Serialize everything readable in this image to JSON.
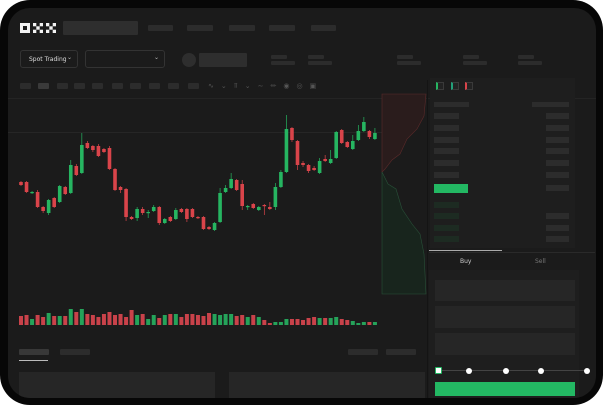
{
  "header": {
    "logo": "OKX"
  },
  "market_bar": {
    "mode_label": "Spot Trading"
  },
  "trade_panel": {
    "buy_label": "Buy",
    "sell_label": "Sell",
    "active_tab": "Buy",
    "slider_percent": 0
  },
  "colors": {
    "up": "#26b561",
    "down": "#d9444a",
    "accent": "#23b863",
    "background": "#1b1b1b"
  },
  "icons": [
    "chevron-down-icon",
    "indicator-icon",
    "draw-icon",
    "ruler-icon",
    "camera-icon",
    "settings-icon",
    "fullscreen-icon",
    "orderbook-both-icon",
    "orderbook-bids-icon",
    "orderbook-asks-icon"
  ],
  "chart_data": {
    "type": "candlestick",
    "candles": [
      [
        68,
        65,
        69,
        64
      ],
      [
        68,
        58,
        69,
        57
      ],
      [
        57,
        58,
        59,
        56
      ],
      [
        58,
        43,
        60,
        42
      ],
      [
        43,
        39,
        44,
        37
      ],
      [
        37,
        50,
        51,
        35
      ],
      [
        52,
        43,
        53,
        42
      ],
      [
        48,
        64,
        65,
        47
      ],
      [
        63,
        56,
        64,
        55
      ],
      [
        57,
        85,
        90,
        56
      ],
      [
        84,
        75,
        86,
        74
      ],
      [
        77,
        105,
        117,
        76
      ],
      [
        107,
        102,
        109,
        101
      ],
      [
        104,
        100,
        105,
        98
      ],
      [
        104,
        94,
        106,
        93
      ],
      [
        101,
        98,
        102,
        97
      ],
      [
        102,
        81,
        104,
        80
      ],
      [
        81,
        60,
        82,
        59
      ],
      [
        63,
        60,
        64,
        57
      ],
      [
        61,
        33,
        62,
        29
      ],
      [
        33,
        31,
        34,
        30
      ],
      [
        32,
        41,
        43,
        29
      ],
      [
        41,
        37,
        43,
        35
      ],
      [
        37,
        38,
        40,
        32
      ],
      [
        39,
        43,
        45,
        38
      ],
      [
        43,
        27,
        44,
        25
      ],
      [
        27,
        31,
        32,
        26
      ],
      [
        33,
        29,
        34,
        28
      ],
      [
        31,
        40,
        42,
        30
      ],
      [
        41,
        38,
        42,
        37
      ],
      [
        41,
        31,
        42,
        28
      ],
      [
        41,
        33,
        42,
        32
      ],
      [
        33,
        32,
        34,
        31
      ],
      [
        33,
        21,
        34,
        20
      ],
      [
        23,
        21,
        24,
        20
      ],
      [
        20,
        27,
        28,
        19
      ],
      [
        28,
        57,
        62,
        27
      ],
      [
        58,
        62,
        65,
        57
      ],
      [
        62,
        71,
        77,
        61
      ],
      [
        70,
        60,
        71,
        59
      ],
      [
        66,
        44,
        70,
        40
      ],
      [
        43,
        44,
        45,
        40
      ],
      [
        46,
        42,
        47,
        41
      ],
      [
        40,
        43,
        44,
        39
      ],
      [
        45,
        44,
        46,
        35
      ],
      [
        43,
        41,
        48,
        40
      ],
      [
        43,
        63,
        67,
        40
      ],
      [
        63,
        78,
        80,
        62
      ],
      [
        78,
        121,
        135,
        77
      ],
      [
        122,
        110,
        123,
        108
      ],
      [
        109,
        85,
        110,
        80
      ],
      [
        87,
        85,
        89,
        83
      ],
      [
        85,
        79,
        86,
        77
      ],
      [
        82,
        80,
        84,
        79
      ],
      [
        77,
        89,
        92,
        76
      ],
      [
        91,
        89,
        95,
        88
      ],
      [
        87,
        91,
        100,
        86
      ],
      [
        92,
        118,
        119,
        91
      ],
      [
        120,
        107,
        121,
        106
      ],
      [
        108,
        103,
        109,
        102
      ],
      [
        101,
        109,
        115,
        100
      ],
      [
        110,
        119,
        125,
        109
      ],
      [
        119,
        128,
        133,
        118
      ],
      [
        119,
        113,
        120,
        111
      ],
      [
        111,
        117,
        122,
        110
      ]
    ],
    "volumes": [
      9,
      10,
      6,
      10,
      8,
      12,
      9,
      9,
      9,
      16,
      13,
      16,
      11,
      10,
      8,
      11,
      13,
      10,
      11,
      8,
      15,
      10,
      11,
      6,
      10,
      7,
      10,
      11,
      11,
      8,
      11,
      11,
      10,
      9,
      12,
      11,
      10,
      11,
      11,
      9,
      10,
      8,
      10,
      8,
      5,
      2,
      3,
      3,
      6,
      6,
      6,
      5,
      7,
      8,
      7,
      7,
      7,
      8,
      6,
      5,
      4,
      2,
      3,
      3,
      3
    ],
    "grid": false
  }
}
